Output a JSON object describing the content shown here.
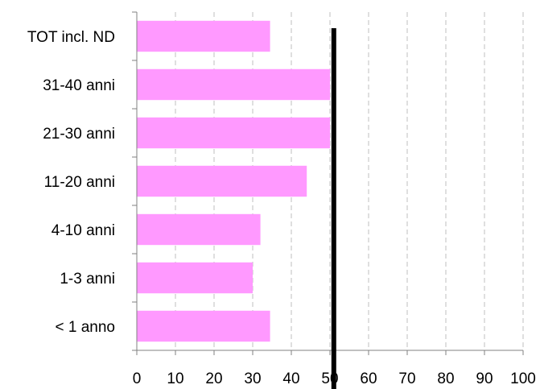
{
  "chart_data": {
    "type": "bar",
    "orientation": "horizontal",
    "categories": [
      "TOT incl. ND",
      "31-40 anni",
      "21-30 anni",
      "11-20 anni",
      "4-10 anni",
      "1-3 anni",
      "< 1 anno"
    ],
    "values": [
      34.5,
      50,
      50,
      44,
      32,
      30,
      34.5
    ],
    "xlim": [
      0,
      100
    ],
    "xticks": [
      0,
      10,
      20,
      30,
      40,
      50,
      60,
      70,
      80,
      90,
      100
    ],
    "reference_line": 51,
    "grid": "vertical dashed",
    "title": "",
    "xlabel": "",
    "ylabel": "",
    "colors": {
      "bar": "#ff99ff",
      "reference": "#000000",
      "grid": "#bfbfbf",
      "axis": "#808080"
    }
  }
}
